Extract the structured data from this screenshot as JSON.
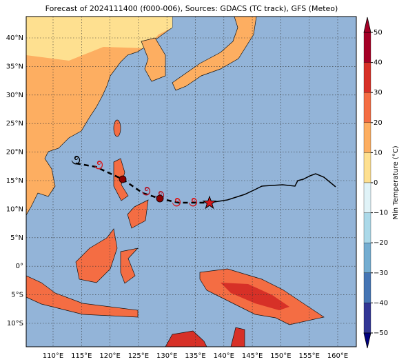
{
  "map": {
    "title": "Forecast of 2024111400 (f000-006), Sources: GDACS (TC track), GFS (Meteo)",
    "lon_labels": [
      "110°E",
      "115°E",
      "120°E",
      "125°E",
      "130°E",
      "135°E",
      "140°E",
      "145°E",
      "150°E",
      "155°E",
      "160°E"
    ],
    "lat_labels": [
      "40°N",
      "35°N",
      "30°N",
      "25°N",
      "20°N",
      "15°N",
      "10°N",
      "5°N",
      "0°",
      "5°S",
      "10°S"
    ],
    "colorbar": {
      "label": "Min Temperature (°C)",
      "ticks": [
        "50",
        "40",
        "30",
        "20",
        "10",
        "0",
        "−10",
        "−20",
        "−30",
        "−40",
        "−50"
      ]
    }
  }
}
